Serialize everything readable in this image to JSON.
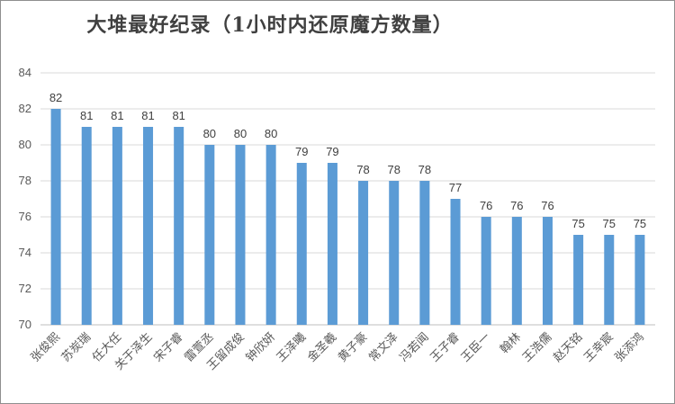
{
  "chart_data": {
    "type": "bar",
    "title": "大堆最好纪录（1小时内还原魔方数量）",
    "xlabel": "",
    "ylabel": "",
    "ylim": [
      70,
      84
    ],
    "yticks": [
      70,
      72,
      74,
      76,
      78,
      80,
      82,
      84
    ],
    "grid": true,
    "legend": "none",
    "bar_color": "#5b9bd5",
    "categories": [
      "张俊熙",
      "苏炭瑞",
      "任大任",
      "关于泽生",
      "宋子睿",
      "雷萱丞",
      "王留成俊",
      "钟欣妍",
      "王泽曦",
      "金圣羲",
      "黄子豪",
      "常文泽",
      "冯若闻",
      "王子睿",
      "王臣一",
      "翰林",
      "王浩儒",
      "赵天铭",
      "王幸宸",
      "张添鸿"
    ],
    "values": [
      82,
      81,
      81,
      81,
      81,
      80,
      80,
      80,
      79,
      79,
      78,
      78,
      78,
      77,
      76,
      76,
      76,
      75,
      75,
      75
    ]
  }
}
